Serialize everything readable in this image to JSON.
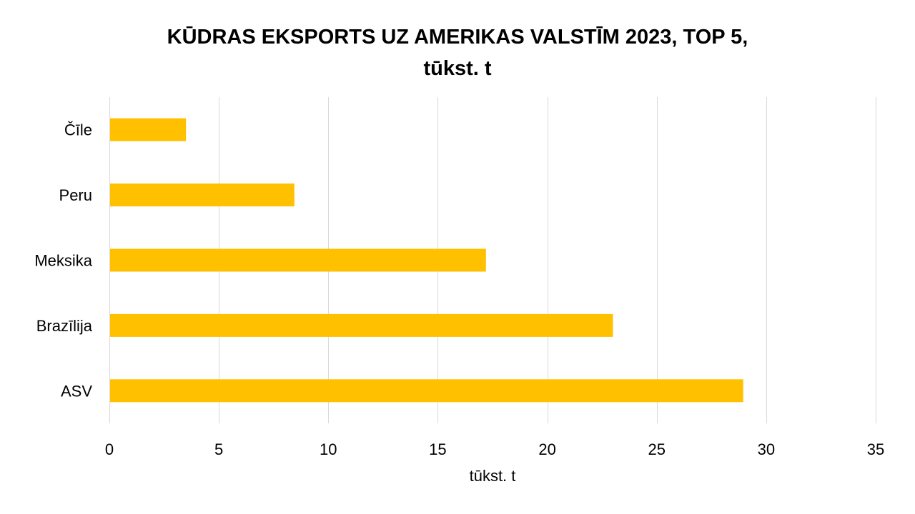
{
  "chart_data": {
    "type": "bar",
    "orientation": "horizontal",
    "title": "KŪDRAS EKSPORTS UZ AMERIKAS VALSTĪM 2023, TOP 5,",
    "subtitle": "tūkst. t",
    "categories": [
      "Čīle",
      "Peru",
      "Meksika",
      "Brazīlija",
      "ASV"
    ],
    "values": [
      3.5,
      8.45,
      17.2,
      23.0,
      28.95
    ],
    "xlabel": "tūkst. t",
    "ylabel": "",
    "xlim": [
      0,
      35
    ],
    "xticks": [
      0,
      5,
      10,
      15,
      20,
      25,
      30,
      35
    ],
    "grid": "vertical",
    "legend": "none",
    "bar_color": "#FFC000",
    "grid_color": "#D9D9D9"
  }
}
